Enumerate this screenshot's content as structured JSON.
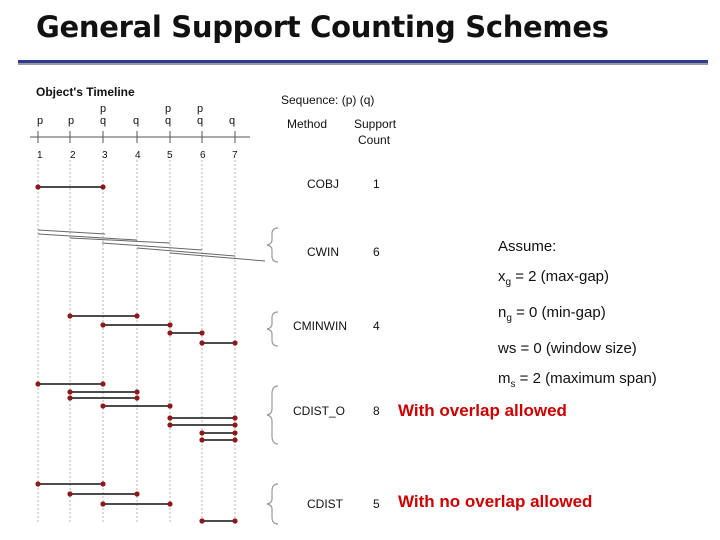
{
  "title": "General Support Counting Schemes",
  "timeline": {
    "heading": "Object's Timeline",
    "top_items": [
      "p",
      "p",
      "p",
      "q",
      "q",
      "p",
      "q",
      "p",
      "q",
      "q"
    ],
    "ticks": [
      "1",
      "2",
      "3",
      "4",
      "5",
      "6",
      "7"
    ]
  },
  "sequence": {
    "heading": "Sequence: (p) (q)",
    "col_method": "Method",
    "col_support_1": "Support",
    "col_support_2": "Count"
  },
  "methods": [
    {
      "name": "COBJ",
      "count": "1"
    },
    {
      "name": "CWIN",
      "count": "6"
    },
    {
      "name": "CMINWIN",
      "count": "4"
    },
    {
      "name": "CDIST_O",
      "count": "8"
    },
    {
      "name": "CDIST",
      "count": "5"
    }
  ],
  "assume": {
    "label": "Assume:",
    "l1_var": "x",
    "l1_sub": "g",
    "l1_rest": " = 2 (max-gap)",
    "l2_var": "n",
    "l2_sub": "g",
    "l2_rest": " = 0 (min-gap)",
    "l3": "ws = 0 (window size)",
    "l4_var": "m",
    "l4_sub": "s",
    "l4_rest": " = 2 (maximum span)"
  },
  "notes": {
    "overlap": "With overlap allowed",
    "no_overlap": "With no overlap allowed"
  },
  "colors": {
    "rule": "#2f3b93",
    "dot": "#8b1a1a",
    "note": "#cc0000"
  }
}
